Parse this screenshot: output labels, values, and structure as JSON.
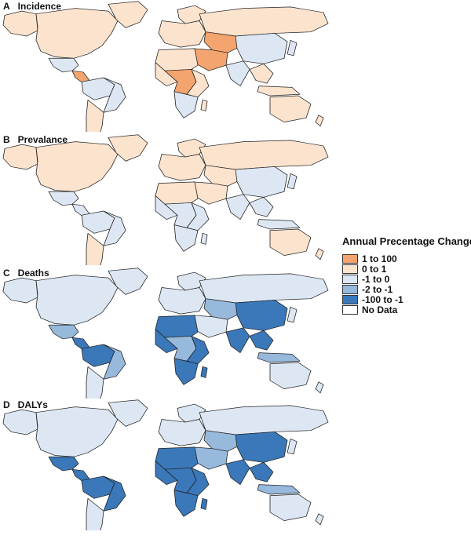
{
  "figure": {
    "panels": [
      {
        "letter": "A",
        "title": "Incidence",
        "region_classes": {
          "north_america": "0 to 1",
          "alaska": "0 to 1",
          "greenland": "0 to 1",
          "mexico": "-1 to 0",
          "central_america": "1 to 100",
          "south_america_north": "-1 to 0",
          "south_america_east": "-1 to 0",
          "south_america_south": "0 to 1",
          "europe": "0 to 1",
          "scandinavia": "0 to 1",
          "russia": "0 to 1",
          "north_africa": "0 to 1",
          "west_africa": "0 to 1",
          "central_africa": "1 to 100",
          "east_africa": "0 to 1",
          "southern_africa": "-1 to 0",
          "middle_east": "1 to 100",
          "central_asia": "1 to 100",
          "india": "-1 to 0",
          "china": "-1 to 0",
          "southeast_asia": "0 to 1",
          "japan": "-1 to 0",
          "indonesia": "0 to 1",
          "australia": "0 to 1",
          "new_zealand": "0 to 1",
          "madagascar": "0 to 1"
        }
      },
      {
        "letter": "B",
        "title": "Prevalance",
        "region_classes": {
          "north_america": "0 to 1",
          "alaska": "0 to 1",
          "greenland": "0 to 1",
          "mexico": "-1 to 0",
          "central_america": "-1 to 0",
          "south_america_north": "-1 to 0",
          "south_america_east": "-1 to 0",
          "south_america_south": "0 to 1",
          "europe": "0 to 1",
          "scandinavia": "0 to 1",
          "russia": "0 to 1",
          "north_africa": "0 to 1",
          "west_africa": "-1 to 0",
          "central_africa": "-1 to 0",
          "east_africa": "-1 to 0",
          "southern_africa": "-1 to 0",
          "middle_east": "0 to 1",
          "central_asia": "0 to 1",
          "india": "-1 to 0",
          "china": "-1 to 0",
          "southeast_asia": "-1 to 0",
          "japan": "-1 to 0",
          "indonesia": "-1 to 0",
          "australia": "0 to 1",
          "new_zealand": "0 to 1",
          "madagascar": "-1 to 0"
        }
      },
      {
        "letter": "C",
        "title": "Deaths",
        "region_classes": {
          "north_america": "-1 to 0",
          "alaska": "-1 to 0",
          "greenland": "-1 to 0",
          "mexico": "-2 to -1",
          "central_america": "-100 to -1",
          "south_america_north": "-100 to -1",
          "south_america_east": "-2 to -1",
          "south_america_south": "-1 to 0",
          "europe": "-1 to 0",
          "scandinavia": "-1 to 0",
          "russia": "-1 to 0",
          "north_africa": "-100 to -1",
          "west_africa": "-100 to -1",
          "central_africa": "-2 to -1",
          "east_africa": "-100 to -1",
          "southern_africa": "-100 to -1",
          "middle_east": "-1 to 0",
          "central_asia": "-2 to -1",
          "india": "-100 to -1",
          "china": "-100 to -1",
          "southeast_asia": "-100 to -1",
          "japan": "-1 to 0",
          "indonesia": "-2 to -1",
          "australia": "-1 to 0",
          "new_zealand": "-1 to 0",
          "madagascar": "-100 to -1"
        }
      },
      {
        "letter": "D",
        "title": "DALYs",
        "region_classes": {
          "north_america": "-1 to 0",
          "alaska": "-1 to 0",
          "greenland": "-1 to 0",
          "mexico": "-100 to -1",
          "central_america": "-100 to -1",
          "south_america_north": "-100 to -1",
          "south_america_east": "-100 to -1",
          "south_america_south": "-1 to 0",
          "europe": "-1 to 0",
          "scandinavia": "-1 to 0",
          "russia": "-1 to 0",
          "north_africa": "-100 to -1",
          "west_africa": "-100 to -1",
          "central_africa": "-100 to -1",
          "east_africa": "-100 to -1",
          "southern_africa": "-100 to -1",
          "middle_east": "-2 to -1",
          "central_asia": "-2 to -1",
          "india": "-100 to -1",
          "china": "-100 to -1",
          "southeast_asia": "-100 to -1",
          "japan": "-1 to 0",
          "indonesia": "-2 to -1",
          "australia": "-1 to 0",
          "new_zealand": "-1 to 0",
          "madagascar": "-100 to -1"
        }
      }
    ],
    "legend": {
      "title": "Annual Precentage Change",
      "items": [
        {
          "label": "1 to 100",
          "color": "#f4a46e"
        },
        {
          "label": "0 to 1",
          "color": "#fbe3ce"
        },
        {
          "label": "-1 to 0",
          "color": "#dde7f3"
        },
        {
          "label": "-2 to -1",
          "color": "#97b9dc"
        },
        {
          "label": "-100 to -1",
          "color": "#3a78b9"
        },
        {
          "label": "No Data",
          "color": "#ffffff"
        }
      ]
    }
  }
}
